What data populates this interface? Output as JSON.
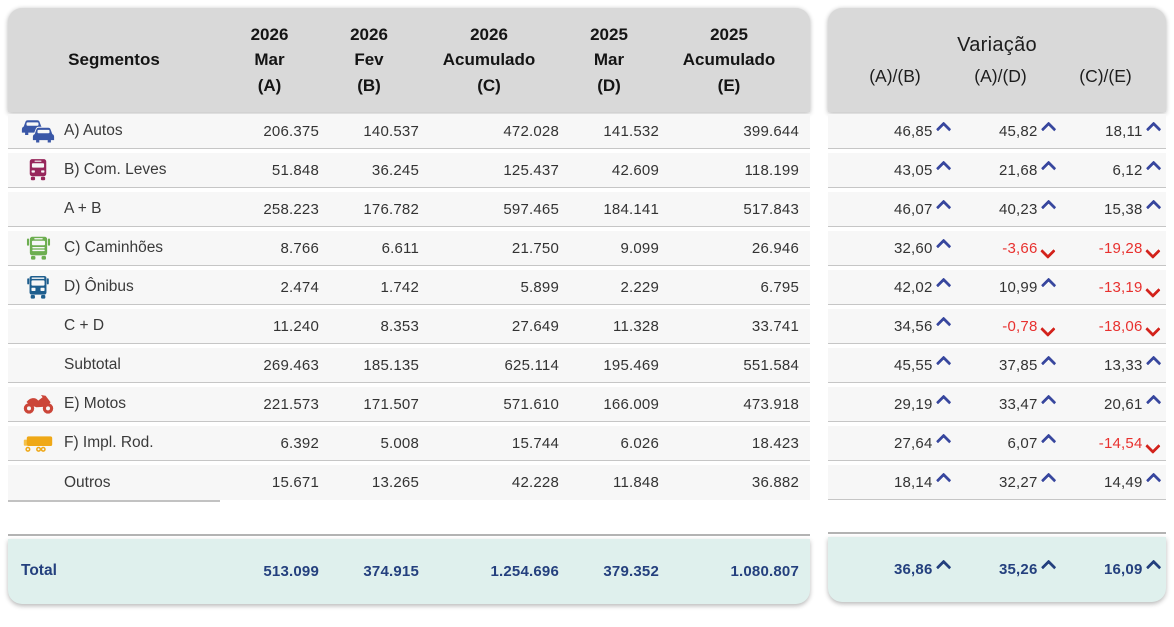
{
  "table": {
    "header": {
      "segments_label": "Segmentos",
      "columns": [
        {
          "year": "2026",
          "period": "Mar",
          "letter": "(A)"
        },
        {
          "year": "2026",
          "period": "Fev",
          "letter": "(B)"
        },
        {
          "year": "2026",
          "period": "Acumulado",
          "letter": "(C)"
        },
        {
          "year": "2025",
          "period": "Mar",
          "letter": "(D)"
        },
        {
          "year": "2025",
          "period": "Acumulado",
          "letter": "(E)"
        }
      ]
    },
    "rows": [
      {
        "label": "A) Autos",
        "icon": "cars-icon",
        "icon_color": "#3A57A7",
        "values": [
          "206.375",
          "140.537",
          "472.028",
          "141.532",
          "399.644"
        ]
      },
      {
        "label": "B) Com. Leves",
        "icon": "light-truck-icon",
        "icon_color": "#97265B",
        "values": [
          "51.848",
          "36.245",
          "125.437",
          "42.609",
          "118.199"
        ]
      },
      {
        "label": "A + B",
        "icon": null,
        "icon_color": null,
        "values": [
          "258.223",
          "176.782",
          "597.465",
          "184.141",
          "517.843"
        ]
      },
      {
        "label": "C) Caminhões",
        "icon": "truck-icon",
        "icon_color": "#6DAE50",
        "values": [
          "8.766",
          "6.611",
          "21.750",
          "9.099",
          "26.946"
        ]
      },
      {
        "label": "D) Ônibus",
        "icon": "bus-icon",
        "icon_color": "#1E5E8E",
        "values": [
          "2.474",
          "1.742",
          "5.899",
          "2.229",
          "6.795"
        ]
      },
      {
        "label": "C + D",
        "icon": null,
        "icon_color": null,
        "values": [
          "11.240",
          "8.353",
          "27.649",
          "11.328",
          "33.741"
        ]
      },
      {
        "label": "Subtotal",
        "icon": null,
        "icon_color": null,
        "values": [
          "269.463",
          "185.135",
          "625.114",
          "195.469",
          "551.584"
        ]
      },
      {
        "label": "E) Motos",
        "icon": "motorcycle-icon",
        "icon_color": "#CB4538",
        "values": [
          "221.573",
          "171.507",
          "571.610",
          "166.009",
          "473.918"
        ]
      },
      {
        "label": "F) Impl. Rod.",
        "icon": "trailer-icon",
        "icon_color": "#EFA817",
        "values": [
          "6.392",
          "5.008",
          "15.744",
          "6.026",
          "18.423"
        ]
      },
      {
        "label": "Outros",
        "icon": null,
        "icon_color": null,
        "values": [
          "15.671",
          "13.265",
          "42.228",
          "11.848",
          "36.882"
        ]
      }
    ],
    "total": {
      "label": "Total",
      "values": [
        "513.099",
        "374.915",
        "1.254.696",
        "379.352",
        "1.080.807"
      ]
    }
  },
  "variation": {
    "title": "Variação",
    "columns": [
      "(A)/(B)",
      "(A)/(D)",
      "(C)/(E)"
    ],
    "rows": [
      {
        "cells": [
          {
            "value": "46,85",
            "direction": "up"
          },
          {
            "value": "45,82",
            "direction": "up"
          },
          {
            "value": "18,11",
            "direction": "up"
          }
        ]
      },
      {
        "cells": [
          {
            "value": "43,05",
            "direction": "up"
          },
          {
            "value": "21,68",
            "direction": "up"
          },
          {
            "value": "6,12",
            "direction": "up"
          }
        ]
      },
      {
        "cells": [
          {
            "value": "46,07",
            "direction": "up"
          },
          {
            "value": "40,23",
            "direction": "up"
          },
          {
            "value": "15,38",
            "direction": "up"
          }
        ]
      },
      {
        "cells": [
          {
            "value": "32,60",
            "direction": "up"
          },
          {
            "value": "-3,66",
            "direction": "down"
          },
          {
            "value": "-19,28",
            "direction": "down"
          }
        ]
      },
      {
        "cells": [
          {
            "value": "42,02",
            "direction": "up"
          },
          {
            "value": "10,99",
            "direction": "up"
          },
          {
            "value": "-13,19",
            "direction": "down"
          }
        ]
      },
      {
        "cells": [
          {
            "value": "34,56",
            "direction": "up"
          },
          {
            "value": "-0,78",
            "direction": "down"
          },
          {
            "value": "-18,06",
            "direction": "down"
          }
        ]
      },
      {
        "cells": [
          {
            "value": "45,55",
            "direction": "up"
          },
          {
            "value": "37,85",
            "direction": "up"
          },
          {
            "value": "13,33",
            "direction": "up"
          }
        ]
      },
      {
        "cells": [
          {
            "value": "29,19",
            "direction": "up"
          },
          {
            "value": "33,47",
            "direction": "up"
          },
          {
            "value": "20,61",
            "direction": "up"
          }
        ]
      },
      {
        "cells": [
          {
            "value": "27,64",
            "direction": "up"
          },
          {
            "value": "6,07",
            "direction": "up"
          },
          {
            "value": "-14,54",
            "direction": "down"
          }
        ]
      },
      {
        "cells": [
          {
            "value": "18,14",
            "direction": "up"
          },
          {
            "value": "32,27",
            "direction": "up"
          },
          {
            "value": "14,49",
            "direction": "up"
          }
        ]
      }
    ],
    "total": {
      "cells": [
        {
          "value": "36,86",
          "direction": "up"
        },
        {
          "value": "35,26",
          "direction": "up"
        },
        {
          "value": "16,09",
          "direction": "up"
        }
      ]
    }
  },
  "colors": {
    "header_bg": "#D9D9D9",
    "row_bg": "#F7F7F7",
    "total_bg": "#DFF0ED",
    "total_text": "#24407E",
    "up_arrow": "#38479E",
    "down_arrow": "#D3231C",
    "negative_text": "#E8312F",
    "autos_icon": "#3A57A7",
    "com_leves_icon": "#97265B",
    "caminhoes_icon": "#6DAE50",
    "onibus_icon": "#1E5E8E",
    "motos_icon": "#CB4538",
    "impl_rod_icon": "#EFA817"
  },
  "chart_data": {
    "type": "table",
    "title": "",
    "columns": [
      "Segmentos",
      "2026 Mar (A)",
      "2026 Fev (B)",
      "2026 Acumulado (C)",
      "2025 Mar (D)",
      "2025 Acumulado (E)",
      "Variação (A)/(B) %",
      "Variação (A)/(D) %",
      "Variação (C)/(E) %"
    ],
    "rows": [
      [
        "A) Autos",
        206375,
        140537,
        472028,
        141532,
        399644,
        46.85,
        45.82,
        18.11
      ],
      [
        "B) Com. Leves",
        51848,
        36245,
        125437,
        42609,
        118199,
        43.05,
        21.68,
        6.12
      ],
      [
        "A + B",
        258223,
        176782,
        597465,
        184141,
        517843,
        46.07,
        40.23,
        15.38
      ],
      [
        "C) Caminhões",
        8766,
        6611,
        21750,
        9099,
        26946,
        32.6,
        -3.66,
        -19.28
      ],
      [
        "D) Ônibus",
        2474,
        1742,
        5899,
        2229,
        6795,
        42.02,
        10.99,
        -13.19
      ],
      [
        "C + D",
        11240,
        8353,
        27649,
        11328,
        33741,
        34.56,
        -0.78,
        -18.06
      ],
      [
        "Subtotal",
        269463,
        185135,
        625114,
        195469,
        551584,
        45.55,
        37.85,
        13.33
      ],
      [
        "E) Motos",
        221573,
        171507,
        571610,
        166009,
        473918,
        29.19,
        33.47,
        20.61
      ],
      [
        "F) Impl. Rod.",
        6392,
        5008,
        15744,
        6026,
        18423,
        27.64,
        6.07,
        -14.54
      ],
      [
        "Outros",
        15671,
        13265,
        42228,
        11848,
        36882,
        18.14,
        32.27,
        14.49
      ],
      [
        "Total",
        513099,
        374915,
        1254696,
        379352,
        1080807,
        36.86,
        35.26,
        16.09
      ]
    ]
  }
}
